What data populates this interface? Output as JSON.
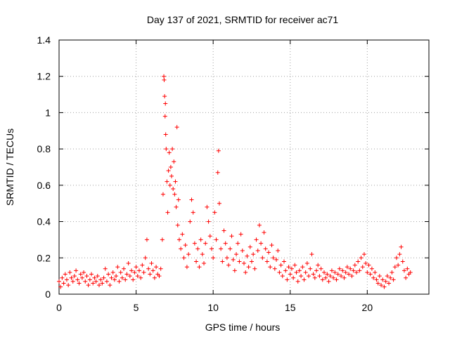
{
  "chart_data": {
    "type": "scatter",
    "title": "Day 137 of 2021, SRMTID for receiver ac71",
    "xlabel": "GPS time / hours",
    "ylabel": "SRMTID / TECUs",
    "xlim": [
      0,
      24
    ],
    "ylim": [
      0,
      1.4
    ],
    "xticks": [
      0,
      5,
      10,
      15,
      20
    ],
    "yticks": [
      0,
      0.2,
      0.4,
      0.6,
      0.8,
      1,
      1.2,
      1.4
    ],
    "ytick_labels": [
      "0",
      "0.2",
      "0.4",
      "0.6",
      "0.8",
      "1",
      "1.2",
      "1.4"
    ],
    "grid": true,
    "marker": "+",
    "series_color": "#ff0000",
    "series": [
      {
        "name": "SRMTID",
        "points": [
          [
            0.0,
            0.07
          ],
          [
            0.1,
            0.04
          ],
          [
            0.2,
            0.09
          ],
          [
            0.3,
            0.06
          ],
          [
            0.4,
            0.11
          ],
          [
            0.5,
            0.08
          ],
          [
            0.6,
            0.05
          ],
          [
            0.7,
            0.12
          ],
          [
            0.8,
            0.09
          ],
          [
            0.9,
            0.07
          ],
          [
            1.0,
            0.1
          ],
          [
            1.1,
            0.13
          ],
          [
            1.2,
            0.08
          ],
          [
            1.3,
            0.06
          ],
          [
            1.4,
            0.11
          ],
          [
            1.5,
            0.09
          ],
          [
            1.6,
            0.12
          ],
          [
            1.7,
            0.07
          ],
          [
            1.8,
            0.1
          ],
          [
            1.9,
            0.05
          ],
          [
            2.0,
            0.08
          ],
          [
            2.1,
            0.11
          ],
          [
            2.2,
            0.06
          ],
          [
            2.3,
            0.09
          ],
          [
            2.4,
            0.07
          ],
          [
            2.5,
            0.1
          ],
          [
            2.6,
            0.05
          ],
          [
            2.7,
            0.08
          ],
          [
            2.8,
            0.06
          ],
          [
            2.9,
            0.09
          ],
          [
            3.0,
            0.14
          ],
          [
            3.1,
            0.07
          ],
          [
            3.2,
            0.11
          ],
          [
            3.3,
            0.05
          ],
          [
            3.4,
            0.09
          ],
          [
            3.5,
            0.12
          ],
          [
            3.6,
            0.08
          ],
          [
            3.7,
            0.1
          ],
          [
            3.8,
            0.15
          ],
          [
            3.9,
            0.07
          ],
          [
            4.0,
            0.12
          ],
          [
            4.1,
            0.09
          ],
          [
            4.2,
            0.14
          ],
          [
            4.3,
            0.08
          ],
          [
            4.4,
            0.11
          ],
          [
            4.5,
            0.17
          ],
          [
            4.6,
            0.1
          ],
          [
            4.7,
            0.13
          ],
          [
            4.8,
            0.08
          ],
          [
            4.9,
            0.12
          ],
          [
            5.0,
            0.15
          ],
          [
            5.1,
            0.1
          ],
          [
            5.2,
            0.13
          ],
          [
            5.3,
            0.09
          ],
          [
            5.4,
            0.16
          ],
          [
            5.5,
            0.12
          ],
          [
            5.6,
            0.2
          ],
          [
            5.7,
            0.3
          ],
          [
            5.8,
            0.14
          ],
          [
            5.9,
            0.11
          ],
          [
            6.0,
            0.17
          ],
          [
            6.1,
            0.13
          ],
          [
            6.2,
            0.09
          ],
          [
            6.3,
            0.15
          ],
          [
            6.4,
            0.11
          ],
          [
            6.5,
            0.1
          ],
          [
            6.6,
            0.14
          ],
          [
            6.7,
            0.3
          ],
          [
            6.75,
            0.55
          ],
          [
            6.8,
            1.2
          ],
          [
            6.82,
            1.18
          ],
          [
            6.85,
            1.09
          ],
          [
            6.88,
            0.98
          ],
          [
            6.9,
            1.05
          ],
          [
            6.92,
            0.88
          ],
          [
            6.95,
            0.8
          ],
          [
            7.0,
            0.62
          ],
          [
            7.05,
            0.45
          ],
          [
            7.1,
            0.68
          ],
          [
            7.15,
            0.78
          ],
          [
            7.2,
            0.6
          ],
          [
            7.25,
            0.7
          ],
          [
            7.3,
            0.65
          ],
          [
            7.35,
            0.8
          ],
          [
            7.4,
            0.58
          ],
          [
            7.45,
            0.73
          ],
          [
            7.5,
            0.55
          ],
          [
            7.55,
            0.62
          ],
          [
            7.6,
            0.48
          ],
          [
            7.65,
            0.92
          ],
          [
            7.7,
            0.38
          ],
          [
            7.75,
            0.52
          ],
          [
            7.8,
            0.3
          ],
          [
            7.9,
            0.25
          ],
          [
            8.0,
            0.33
          ],
          [
            8.1,
            0.2
          ],
          [
            8.2,
            0.27
          ],
          [
            8.3,
            0.15
          ],
          [
            8.4,
            0.22
          ],
          [
            8.5,
            0.4
          ],
          [
            8.6,
            0.52
          ],
          [
            8.7,
            0.45
          ],
          [
            8.8,
            0.28
          ],
          [
            8.9,
            0.18
          ],
          [
            9.0,
            0.25
          ],
          [
            9.1,
            0.15
          ],
          [
            9.2,
            0.3
          ],
          [
            9.3,
            0.22
          ],
          [
            9.4,
            0.17
          ],
          [
            9.5,
            0.28
          ],
          [
            9.6,
            0.48
          ],
          [
            9.7,
            0.4
          ],
          [
            9.8,
            0.32
          ],
          [
            9.9,
            0.25
          ],
          [
            10.0,
            0.2
          ],
          [
            10.1,
            0.45
          ],
          [
            10.2,
            0.3
          ],
          [
            10.3,
            0.67
          ],
          [
            10.35,
            0.79
          ],
          [
            10.4,
            0.5
          ],
          [
            10.5,
            0.25
          ],
          [
            10.6,
            0.18
          ],
          [
            10.7,
            0.35
          ],
          [
            10.8,
            0.28
          ],
          [
            10.9,
            0.2
          ],
          [
            11.0,
            0.16
          ],
          [
            11.1,
            0.25
          ],
          [
            11.2,
            0.32
          ],
          [
            11.3,
            0.19
          ],
          [
            11.4,
            0.13
          ],
          [
            11.5,
            0.22
          ],
          [
            11.6,
            0.28
          ],
          [
            11.7,
            0.18
          ],
          [
            11.8,
            0.33
          ],
          [
            11.9,
            0.24
          ],
          [
            12.0,
            0.17
          ],
          [
            12.1,
            0.12
          ],
          [
            12.2,
            0.21
          ],
          [
            12.3,
            0.15
          ],
          [
            12.4,
            0.26
          ],
          [
            12.5,
            0.18
          ],
          [
            12.6,
            0.22
          ],
          [
            12.7,
            0.14
          ],
          [
            12.8,
            0.3
          ],
          [
            12.9,
            0.24
          ],
          [
            13.0,
            0.38
          ],
          [
            13.1,
            0.28
          ],
          [
            13.2,
            0.2
          ],
          [
            13.3,
            0.34
          ],
          [
            13.4,
            0.25
          ],
          [
            13.5,
            0.18
          ],
          [
            13.6,
            0.23
          ],
          [
            13.7,
            0.15
          ],
          [
            13.8,
            0.27
          ],
          [
            13.9,
            0.2
          ],
          [
            14.0,
            0.14
          ],
          [
            14.1,
            0.19
          ],
          [
            14.2,
            0.24
          ],
          [
            14.3,
            0.12
          ],
          [
            14.4,
            0.16
          ],
          [
            14.5,
            0.1
          ],
          [
            14.6,
            0.18
          ],
          [
            14.7,
            0.13
          ],
          [
            14.8,
            0.08
          ],
          [
            14.9,
            0.15
          ],
          [
            15.0,
            0.11
          ],
          [
            15.1,
            0.14
          ],
          [
            15.2,
            0.09
          ],
          [
            15.3,
            0.16
          ],
          [
            15.4,
            0.12
          ],
          [
            15.5,
            0.07
          ],
          [
            15.6,
            0.13
          ],
          [
            15.7,
            0.1
          ],
          [
            15.8,
            0.15
          ],
          [
            15.9,
            0.08
          ],
          [
            16.0,
            0.12
          ],
          [
            16.1,
            0.17
          ],
          [
            16.2,
            0.1
          ],
          [
            16.3,
            0.14
          ],
          [
            16.4,
            0.22
          ],
          [
            16.5,
            0.11
          ],
          [
            16.6,
            0.09
          ],
          [
            16.7,
            0.13
          ],
          [
            16.8,
            0.16
          ],
          [
            16.9,
            0.1
          ],
          [
            17.0,
            0.14
          ],
          [
            17.1,
            0.08
          ],
          [
            17.2,
            0.12
          ],
          [
            17.3,
            0.09
          ],
          [
            17.4,
            0.11
          ],
          [
            17.5,
            0.07
          ],
          [
            17.6,
            0.1
          ],
          [
            17.7,
            0.13
          ],
          [
            17.8,
            0.09
          ],
          [
            17.9,
            0.12
          ],
          [
            18.0,
            0.08
          ],
          [
            18.1,
            0.11
          ],
          [
            18.2,
            0.14
          ],
          [
            18.3,
            0.1
          ],
          [
            18.4,
            0.13
          ],
          [
            18.5,
            0.09
          ],
          [
            18.6,
            0.12
          ],
          [
            18.7,
            0.15
          ],
          [
            18.8,
            0.11
          ],
          [
            18.9,
            0.14
          ],
          [
            19.0,
            0.1
          ],
          [
            19.1,
            0.13
          ],
          [
            19.2,
            0.16
          ],
          [
            19.3,
            0.12
          ],
          [
            19.4,
            0.18
          ],
          [
            19.5,
            0.13
          ],
          [
            19.6,
            0.2
          ],
          [
            19.7,
            0.15
          ],
          [
            19.8,
            0.22
          ],
          [
            19.9,
            0.17
          ],
          [
            20.0,
            0.12
          ],
          [
            20.1,
            0.16
          ],
          [
            20.2,
            0.11
          ],
          [
            20.3,
            0.14
          ],
          [
            20.4,
            0.09
          ],
          [
            20.5,
            0.12
          ],
          [
            20.6,
            0.08
          ],
          [
            20.7,
            0.06
          ],
          [
            20.8,
            0.1
          ],
          [
            20.9,
            0.05
          ],
          [
            21.0,
            0.08
          ],
          [
            21.1,
            0.04
          ],
          [
            21.2,
            0.07
          ],
          [
            21.3,
            0.1
          ],
          [
            21.4,
            0.06
          ],
          [
            21.5,
            0.09
          ],
          [
            21.6,
            0.12
          ],
          [
            21.7,
            0.08
          ],
          [
            21.8,
            0.15
          ],
          [
            21.9,
            0.2
          ],
          [
            22.0,
            0.16
          ],
          [
            22.1,
            0.22
          ],
          [
            22.2,
            0.26
          ],
          [
            22.3,
            0.18
          ],
          [
            22.4,
            0.13
          ],
          [
            22.5,
            0.09
          ],
          [
            22.6,
            0.14
          ],
          [
            22.7,
            0.11
          ],
          [
            22.8,
            0.12
          ]
        ]
      }
    ]
  }
}
